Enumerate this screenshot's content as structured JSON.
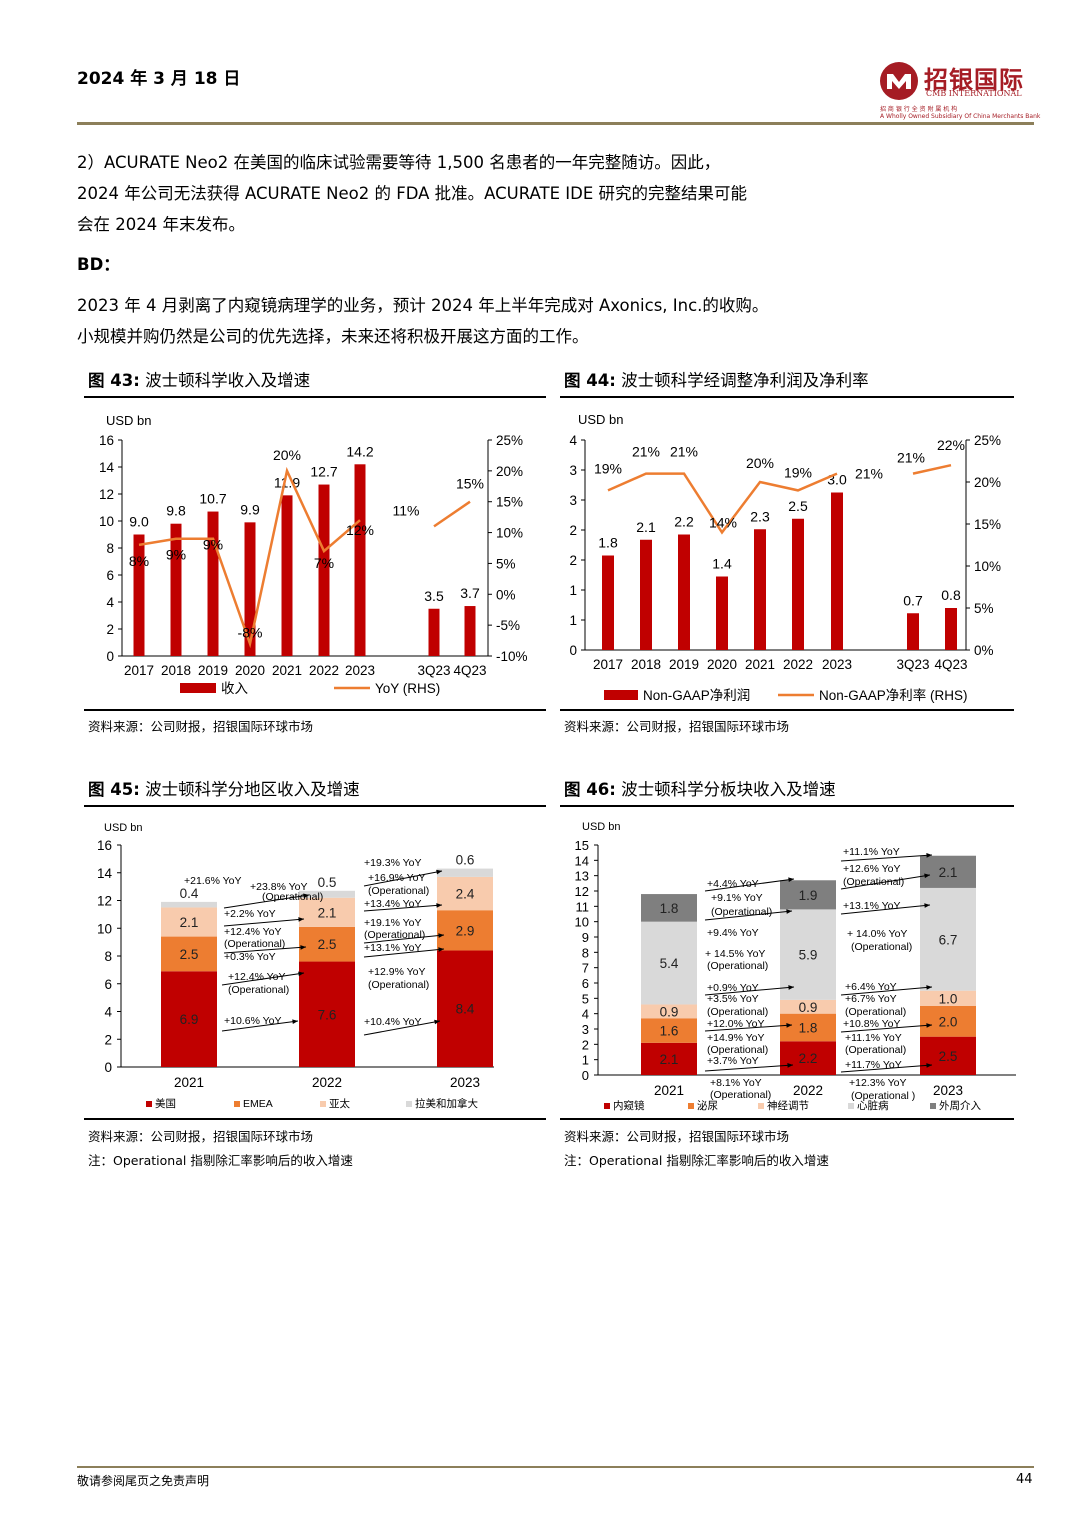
{
  "header": {
    "date": "2024 年 3 月 18 日"
  },
  "logo": {
    "name": "招银国际",
    "english": "CMB INTERNATIONAL",
    "tagline_cn": "招 商 银 行 全 资 附 属 机 构",
    "tagline_en": "A Wholly Owned Subsidiary Of China Merchants Bank"
  },
  "body": {
    "para1": [
      "2）ACURATE Neo2 在美国的临床试验需要等待 1,500 名患者的一年完整随访。因此，",
      "2024 年公司无法获得 ACURATE Neo2 的 FDA 批准。ACURATE IDE 研究的完整结果可能",
      "会在 2024 年末发布。"
    ],
    "bd_heading": "BD：",
    "para2": [
      "2023 年 4 月剥离了内窥镜病理学的业务，预计 2024 年上半年完成对 Axonics, Inc.的收购。",
      "小规模并购仍然是公司的优先选择，未来还将积极开展这方面的工作。"
    ]
  },
  "figures": {
    "f43": {
      "num": "图 43:",
      "title": "波士顿科学收入及增速",
      "source": "资料来源：公司财报，招银国际环球市场"
    },
    "f44": {
      "num": "图 44:",
      "title": "波士顿科学经调整净利润及净利率",
      "source": "资料来源：公司财报，招银国际环球市场"
    },
    "f45": {
      "num": "图 45:",
      "title": "波士顿科学分地区收入及增速",
      "source": "资料来源：公司财报，招银国际环球市场",
      "note": "注：Operational 指剔除汇率影响后的收入增速"
    },
    "f46": {
      "num": "图 46:",
      "title": "波士顿科学分板块收入及增速",
      "source": "资料来源：公司财报，招银国际环球市场",
      "note": "注：Operational 指剔除汇率影响后的收入增速"
    }
  },
  "colors": {
    "red": "#c00000",
    "orange": "#ed7d31",
    "peach": "#f8cbad",
    "grey": "#bfbfbf",
    "lightgrey": "#d9d9d9",
    "darkgrey": "#7f7f7f",
    "rule": "#8c7f5a"
  },
  "chart_data": [
    {
      "id": "f43",
      "type": "bar",
      "unit": "USD bn",
      "categories": [
        "2017",
        "2018",
        "2019",
        "2020",
        "2021",
        "2022",
        "2023",
        "3Q23",
        "4Q23"
      ],
      "series": [
        {
          "name": "收入",
          "values": [
            9.0,
            9.8,
            10.7,
            9.9,
            11.9,
            12.7,
            14.2,
            3.5,
            3.7
          ],
          "labels": [
            "9.0",
            "9.8",
            "10.7",
            "9.9",
            "11.9",
            "12.7",
            "14.2",
            "3.5",
            "3.7"
          ]
        },
        {
          "name": "YoY (RHS)",
          "type": "line",
          "values": [
            8,
            9,
            9,
            -8,
            20,
            7,
            12,
            11,
            15
          ],
          "labels": [
            "8%",
            "9%",
            "9%",
            "-8%",
            "20%",
            "7%",
            "12%",
            "11%",
            "15%"
          ]
        }
      ],
      "ylim": [
        0,
        16
      ],
      "yticks": [
        "0",
        "2",
        "4",
        "6",
        "8",
        "10",
        "12",
        "14",
        "16"
      ],
      "y2lim": [
        -10,
        25
      ],
      "y2ticks": [
        "-10%",
        "-5%",
        "0%",
        "5%",
        "10%",
        "15%",
        "20%",
        "25%"
      ]
    },
    {
      "id": "f44",
      "type": "bar",
      "unit": "USD bn",
      "categories": [
        "2017",
        "2018",
        "2019",
        "2020",
        "2021",
        "2022",
        "2023",
        "3Q23",
        "4Q23"
      ],
      "series": [
        {
          "name": "Non-GAAP净利润",
          "values": [
            1.8,
            2.1,
            2.2,
            1.4,
            2.3,
            2.5,
            3.0,
            0.7,
            0.8
          ],
          "labels": [
            "1.8",
            "2.1",
            "2.2",
            "1.4",
            "2.3",
            "2.5",
            "3.0",
            "0.7",
            "0.8"
          ]
        },
        {
          "name": "Non-GAAP净利率 (RHS)",
          "type": "line",
          "values": [
            19,
            21,
            21,
            14,
            20,
            19,
            21,
            21,
            22
          ],
          "labels": [
            "19%",
            "21%",
            "21%",
            "14%",
            "20%",
            "19%",
            "21%",
            "21%",
            "22%"
          ]
        }
      ],
      "yticks": [
        "0",
        "1",
        "1",
        "2",
        "2",
        "3",
        "3",
        "4"
      ],
      "y2lim": [
        0,
        25
      ],
      "y2ticks": [
        "0%",
        "5%",
        "10%",
        "15%",
        "20%",
        "25%"
      ]
    },
    {
      "id": "f45",
      "type": "bar",
      "stacked": true,
      "unit": "USD bn",
      "categories": [
        "2021",
        "2022",
        "2023"
      ],
      "series": [
        {
          "name": "美国",
          "values": [
            6.9,
            7.6,
            8.4
          ]
        },
        {
          "name": "EMEA",
          "values": [
            2.5,
            2.5,
            2.9
          ]
        },
        {
          "name": "亚太",
          "values": [
            2.1,
            2.1,
            2.4
          ]
        },
        {
          "name": "拉美和加拿大",
          "values": [
            0.4,
            0.5,
            0.6
          ]
        }
      ],
      "ylim": [
        0,
        16
      ],
      "yticks": [
        "0",
        "2",
        "4",
        "6",
        "8",
        "10",
        "12",
        "14",
        "16"
      ],
      "annotations": [
        "+21.6% YoY",
        "+23.8% YoY",
        "(Operational)",
        "+2.2% YoY",
        "+12.4% YoY",
        "(Operational)",
        "+0.3% YoY",
        "+12.4% YoY",
        "(Operational)",
        "+10.6% YoY",
        "+19.3% YoY",
        "+16.9% YoY",
        "(Operational)",
        "+13.4% YoY",
        "+19.1% YoY",
        "(Operational)",
        "+13.1% YoY",
        "+12.9% YoY",
        "(Operational)",
        "+10.4% YoY"
      ]
    },
    {
      "id": "f46",
      "type": "bar",
      "stacked": true,
      "unit": "USD  bn",
      "categories": [
        "2021",
        "2022",
        "2023"
      ],
      "series": [
        {
          "name": "内窥镜",
          "values": [
            2.1,
            2.2,
            2.5
          ]
        },
        {
          "name": "泌尿",
          "values": [
            1.6,
            1.8,
            2.0
          ]
        },
        {
          "name": "神经调节",
          "values": [
            0.9,
            0.9,
            1.0
          ]
        },
        {
          "name": "心脏病",
          "values": [
            5.4,
            5.9,
            6.7
          ]
        },
        {
          "name": "外周介入",
          "values": [
            1.8,
            1.9,
            2.1
          ]
        }
      ],
      "ylim": [
        0,
        15
      ],
      "yticks": [
        "0",
        "1",
        "2",
        "3",
        "4",
        "5",
        "6",
        "7",
        "8",
        "9",
        "10",
        "11",
        "12",
        "13",
        "14",
        "15"
      ],
      "annotations": [
        "+4.4% YoY",
        "+9.1% YoY",
        "(Operational)",
        "+9.4% YoY",
        "+ 14.5% YoY",
        "(Operational)",
        "+0.9% YoY",
        "+3.5% YoY",
        "(Operational)",
        "+12.0% YoY",
        "+14.9% YoY",
        "(Operational)",
        "+3.7% YoY",
        "+8.1% YoY",
        "(Operational)",
        "+11.1% YoY",
        "+12.6% YoY",
        "(Operational)",
        "+13.1% YoY",
        "+ 14.0% YoY",
        "(Operational)",
        "+6.4% YoY",
        "+6.7% YoY",
        "(Operational)",
        "+10.8% YoY",
        "+11.1% YoY",
        "(Operational)",
        "+11.7% YoY",
        "+12.3% YoY",
        "(Operational )"
      ]
    }
  ],
  "footer": {
    "disclaimer": "敬请参阅尾页之免责声明",
    "page": "44"
  }
}
